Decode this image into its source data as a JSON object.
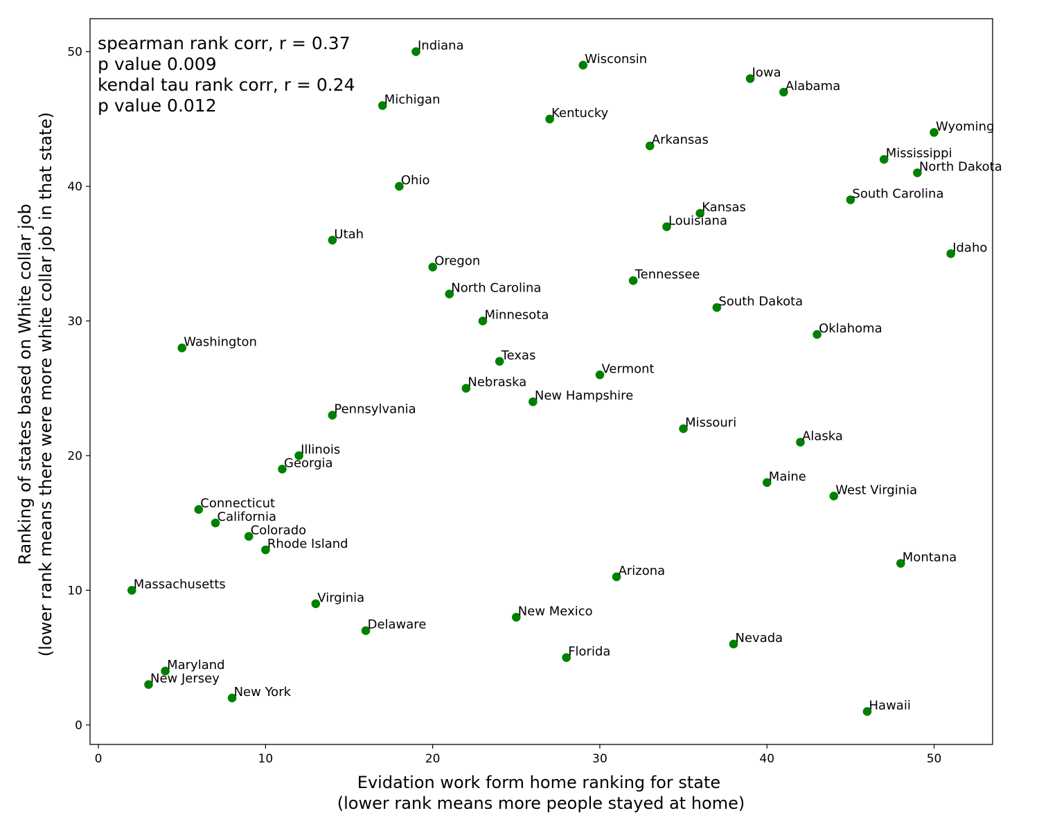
{
  "chart_data": {
    "type": "scatter",
    "title": "",
    "xlabel": [
      "Evidation work form home ranking for state",
      "(lower rank means more people stayed at home)"
    ],
    "ylabel": [
      "Ranking of states based on White collar job",
      "(lower rank means there were more white collar job in that state)"
    ],
    "xlim": [
      -0.5,
      53.5
    ],
    "ylim": [
      -1.45,
      52.45
    ],
    "xticks": [
      0,
      10,
      20,
      30,
      40,
      50
    ],
    "yticks": [
      0,
      10,
      20,
      30,
      40,
      50
    ],
    "grid": false,
    "marker_color": "#008000",
    "annotations": [
      "spearman rank corr, r = 0.37",
      "p value 0.009",
      "kendal tau rank corr, r = 0.24",
      "p value 0.012"
    ],
    "points": [
      {
        "label": "Indiana",
        "x": 19,
        "y": 50
      },
      {
        "label": "Wisconsin",
        "x": 29,
        "y": 49
      },
      {
        "label": "Iowa",
        "x": 39,
        "y": 48
      },
      {
        "label": "Alabama",
        "x": 41,
        "y": 47
      },
      {
        "label": "Michigan",
        "x": 17,
        "y": 46
      },
      {
        "label": "Kentucky",
        "x": 27,
        "y": 45
      },
      {
        "label": "Wyoming",
        "x": 50,
        "y": 44
      },
      {
        "label": "Arkansas",
        "x": 33,
        "y": 43
      },
      {
        "label": "Mississippi",
        "x": 47,
        "y": 42
      },
      {
        "label": "North Dakota",
        "x": 49,
        "y": 41
      },
      {
        "label": "Ohio",
        "x": 18,
        "y": 40
      },
      {
        "label": "South Carolina",
        "x": 45,
        "y": 39
      },
      {
        "label": "Kansas",
        "x": 36,
        "y": 38
      },
      {
        "label": "Louisiana",
        "x": 34,
        "y": 37
      },
      {
        "label": "Utah",
        "x": 14,
        "y": 36
      },
      {
        "label": "Idaho",
        "x": 51,
        "y": 35
      },
      {
        "label": "Oregon",
        "x": 20,
        "y": 34
      },
      {
        "label": "Tennessee",
        "x": 32,
        "y": 33
      },
      {
        "label": "North Carolina",
        "x": 21,
        "y": 32
      },
      {
        "label": "South Dakota",
        "x": 37,
        "y": 31
      },
      {
        "label": "Minnesota",
        "x": 23,
        "y": 30
      },
      {
        "label": "Oklahoma",
        "x": 43,
        "y": 29
      },
      {
        "label": "Washington",
        "x": 5,
        "y": 28
      },
      {
        "label": "Texas",
        "x": 24,
        "y": 27
      },
      {
        "label": "Vermont",
        "x": 30,
        "y": 26
      },
      {
        "label": "Nebraska",
        "x": 22,
        "y": 25
      },
      {
        "label": "New Hampshire",
        "x": 26,
        "y": 24
      },
      {
        "label": "Pennsylvania",
        "x": 14,
        "y": 23
      },
      {
        "label": "Missouri",
        "x": 35,
        "y": 22
      },
      {
        "label": "Alaska",
        "x": 42,
        "y": 21
      },
      {
        "label": "Illinois",
        "x": 12,
        "y": 20
      },
      {
        "label": "Georgia",
        "x": 11,
        "y": 19
      },
      {
        "label": "Maine",
        "x": 40,
        "y": 18
      },
      {
        "label": "West Virginia",
        "x": 44,
        "y": 17
      },
      {
        "label": "Connecticut",
        "x": 6,
        "y": 16
      },
      {
        "label": "California",
        "x": 7,
        "y": 15
      },
      {
        "label": "Colorado",
        "x": 9,
        "y": 14
      },
      {
        "label": "Rhode Island",
        "x": 10,
        "y": 13
      },
      {
        "label": "Montana",
        "x": 48,
        "y": 12
      },
      {
        "label": "Arizona",
        "x": 31,
        "y": 11
      },
      {
        "label": "Massachusetts",
        "x": 2,
        "y": 10
      },
      {
        "label": "Virginia",
        "x": 13,
        "y": 9
      },
      {
        "label": "New Mexico",
        "x": 25,
        "y": 8
      },
      {
        "label": "Delaware",
        "x": 16,
        "y": 7
      },
      {
        "label": "Nevada",
        "x": 38,
        "y": 6
      },
      {
        "label": "Florida",
        "x": 28,
        "y": 5
      },
      {
        "label": "Maryland",
        "x": 4,
        "y": 4
      },
      {
        "label": "New Jersey",
        "x": 3,
        "y": 3
      },
      {
        "label": "New York",
        "x": 8,
        "y": 2
      },
      {
        "label": "Hawaii",
        "x": 46,
        "y": 1
      }
    ]
  }
}
